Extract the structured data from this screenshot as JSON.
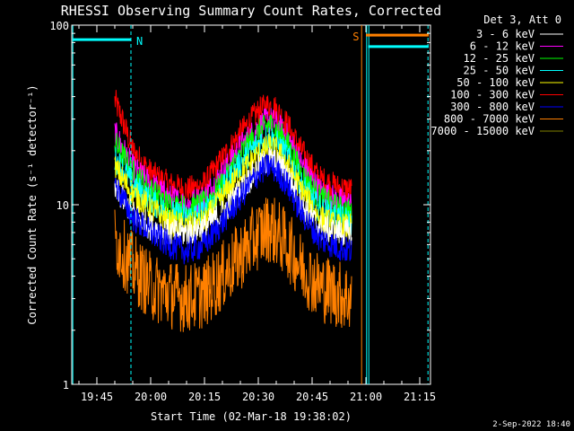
{
  "chart_data": {
    "type": "line",
    "title": "RHESSI Observing Summary Count Rates, Corrected",
    "xlabel": "Start Time (02-Mar-18 19:38:02)",
    "ylabel": "Corrected Count Rate (s⁻¹ detector⁻¹)",
    "y_scale": "log",
    "ylim": [
      1,
      100
    ],
    "xlim_minutes": [
      0,
      100
    ],
    "x_ticks": [
      {
        "label": "19:45",
        "minute": 7.0
      },
      {
        "label": "20:00",
        "minute": 22.0
      },
      {
        "label": "20:15",
        "minute": 37.0
      },
      {
        "label": "20:30",
        "minute": 52.0
      },
      {
        "label": "20:45",
        "minute": 67.0
      },
      {
        "label": "21:00",
        "minute": 82.0
      },
      {
        "label": "21:15",
        "minute": 97.0
      }
    ],
    "y_ticks": [
      {
        "label": "1",
        "value": 1
      },
      {
        "label": "10",
        "value": 10
      },
      {
        "label": "100",
        "value": 100
      }
    ],
    "legend_header": "Det 3, Att 0",
    "legend_position": "right",
    "series": [
      {
        "name": "3 - 6 keV",
        "color": "#ffffff",
        "x": [
          12,
          14,
          17,
          22,
          27,
          32,
          37,
          42,
          47,
          52,
          55,
          57,
          60,
          64,
          69,
          74,
          78
        ],
        "y": [
          12,
          11,
          9,
          7.5,
          7,
          7,
          7.5,
          9,
          12,
          16,
          18,
          17,
          15,
          10,
          7.5,
          7,
          7
        ]
      },
      {
        "name": "6 - 12 keV",
        "color": "#ff00ff",
        "x": [
          12,
          14,
          17,
          22,
          27,
          32,
          37,
          42,
          47,
          52,
          55,
          57,
          60,
          64,
          69,
          74,
          78
        ],
        "y": [
          25,
          21,
          16,
          13,
          11,
          10,
          11,
          15,
          21,
          27,
          30,
          28,
          24,
          17,
          12,
          10.5,
          10
        ]
      },
      {
        "name": "12 - 25 keV",
        "color": "#00ff00",
        "x": [
          12,
          14,
          17,
          22,
          27,
          32,
          37,
          42,
          47,
          52,
          55,
          57,
          60,
          64,
          69,
          74,
          78
        ],
        "y": [
          22,
          19,
          15,
          12,
          10,
          9.5,
          10,
          13,
          19,
          25,
          28,
          26,
          22,
          15,
          11,
          9.5,
          9
        ]
      },
      {
        "name": "25 - 50 keV",
        "color": "#00ffff",
        "x": [
          12,
          14,
          17,
          22,
          27,
          32,
          37,
          42,
          47,
          52,
          55,
          57,
          60,
          64,
          69,
          74,
          78
        ],
        "y": [
          18,
          16,
          13,
          10.5,
          9,
          8.5,
          9,
          12,
          17,
          22,
          24,
          22,
          19,
          13,
          9.5,
          8.5,
          8
        ]
      },
      {
        "name": "50 - 100 keV",
        "color": "#ffff00",
        "x": [
          12,
          14,
          17,
          22,
          27,
          32,
          37,
          42,
          47,
          52,
          55,
          57,
          60,
          64,
          69,
          74,
          78
        ],
        "y": [
          16,
          14,
          11.5,
          9.5,
          8,
          7.5,
          8,
          11,
          15,
          19,
          21,
          20,
          17,
          12,
          8.5,
          7.5,
          7.5
        ]
      },
      {
        "name": "100 - 300 keV",
        "color": "#ff0000",
        "x": [
          12,
          14,
          17,
          22,
          27,
          32,
          37,
          42,
          47,
          52,
          55,
          57,
          60,
          64,
          69,
          74,
          78
        ],
        "y": [
          38,
          30,
          20,
          15,
          13,
          12,
          13,
          18,
          25,
          33,
          36,
          34,
          28,
          20,
          14,
          12.5,
          12
        ]
      },
      {
        "name": "300 - 800 keV",
        "color": "#0000ff",
        "x": [
          12,
          14,
          17,
          22,
          27,
          32,
          37,
          42,
          47,
          52,
          55,
          57,
          60,
          64,
          69,
          74,
          78
        ],
        "y": [
          13,
          11,
          8.5,
          7,
          6,
          5.5,
          6,
          8,
          11,
          15,
          16.5,
          15.5,
          13,
          9,
          6.5,
          5.8,
          5.5
        ]
      },
      {
        "name": "800 - 7000 keV",
        "color": "#ff8000",
        "x": [
          12,
          14,
          17,
          22,
          27,
          32,
          37,
          42,
          47,
          52,
          55,
          57,
          60,
          64,
          69,
          74,
          78
        ],
        "y": [
          6.5,
          5.5,
          4.5,
          3.5,
          3.2,
          3,
          3.2,
          4,
          5.2,
          6.8,
          7.5,
          7,
          6,
          4.5,
          3.5,
          3.2,
          3
        ]
      },
      {
        "name": "7000 - 15000 keV",
        "color": "#7f7f00",
        "x": [],
        "y": []
      }
    ],
    "annotations": [
      {
        "label": "N",
        "minute": 16.5,
        "color": "#00ffff"
      },
      {
        "label": "S",
        "minute": 80.8,
        "color": "#ff8000"
      }
    ],
    "saa_bars": [
      {
        "color": "#00ffff",
        "start_minute": 0.3,
        "end_minute": 16.5,
        "level": 83
      },
      {
        "color": "#00ffff",
        "start_minute": 82.6,
        "end_minute": 99.5,
        "level": 76
      },
      {
        "color": "#ff8000",
        "start_minute": 82.0,
        "end_minute": 99.5,
        "level": 88
      }
    ],
    "vertical_solid_lines": [
      {
        "minute": 0.3,
        "color": "#00ffff"
      },
      {
        "minute": 80.8,
        "color": "#ff8000"
      },
      {
        "minute": 82.2,
        "color": "#00ffff"
      },
      {
        "minute": 82.8,
        "color": "#00ffff"
      }
    ],
    "vertical_dashed_lines": [
      {
        "minute": 16.5,
        "color": "#00ffff"
      },
      {
        "minute": 99.3,
        "color": "#00ffff"
      }
    ]
  },
  "footer": {
    "date_stamp": "2-Sep-2022 18:40"
  }
}
